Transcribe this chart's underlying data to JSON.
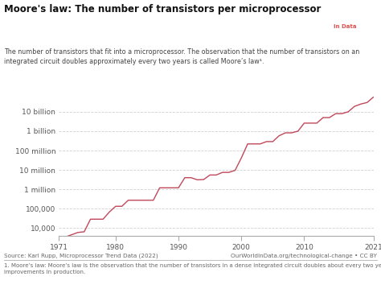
{
  "title": "Moore's law: The number of transistors per microprocessor",
  "subtitle": "The number of transistors that fit into a microprocessor. The observation that the number of transistors on an\nintegrated circuit doubles approximately every two years is called Moore’s law¹.",
  "source_left": "Source: Karl Rupp, Microprocessor Trend Data (2022)",
  "source_right": "OurWorldInData.org/technological-change • CC BY",
  "footnote": "1. Moore’s law: Moore’s law is the observation that the number of transistors in a dense integrated circuit doubles about every two years, because of\nimprovements in production.",
  "line_color": "#c0485a",
  "background_color": "#ffffff",
  "grid_color": "#cccccc",
  "ytick_labels": [
    "10,000",
    "100,000",
    "1 million",
    "10 million",
    "100 million",
    "1 billion",
    "10 billion"
  ],
  "ytick_values": [
    10000,
    100000,
    1000000,
    10000000,
    100000000,
    1000000000,
    10000000000
  ],
  "xlim": [
    1971,
    2021
  ],
  "ylim": [
    4000,
    120000000000
  ],
  "xticks": [
    1971,
    1980,
    1990,
    2000,
    2010,
    2021
  ],
  "logo_bg": "#1a3a5c",
  "data": [
    [
      1971,
      2300
    ],
    [
      1972,
      3500
    ],
    [
      1974,
      6000
    ],
    [
      1975,
      6500
    ],
    [
      1976,
      29000
    ],
    [
      1978,
      29000
    ],
    [
      1979,
      68000
    ],
    [
      1980,
      134000
    ],
    [
      1981,
      134000
    ],
    [
      1982,
      275000
    ],
    [
      1983,
      275000
    ],
    [
      1984,
      275000
    ],
    [
      1985,
      275000
    ],
    [
      1986,
      275000
    ],
    [
      1987,
      1200000
    ],
    [
      1988,
      1200000
    ],
    [
      1989,
      1200000
    ],
    [
      1990,
      1200000
    ],
    [
      1991,
      4000000
    ],
    [
      1992,
      4000000
    ],
    [
      1993,
      3100000
    ],
    [
      1994,
      3200000
    ],
    [
      1995,
      5500000
    ],
    [
      1996,
      5500000
    ],
    [
      1997,
      7500000
    ],
    [
      1998,
      7500000
    ],
    [
      1999,
      9500000
    ],
    [
      2000,
      42000000
    ],
    [
      2001,
      220000000
    ],
    [
      2002,
      220000000
    ],
    [
      2003,
      220000000
    ],
    [
      2004,
      290000000
    ],
    [
      2005,
      290000000
    ],
    [
      2006,
      580000000
    ],
    [
      2007,
      820000000
    ],
    [
      2008,
      820000000
    ],
    [
      2009,
      1000000000
    ],
    [
      2010,
      2600000000
    ],
    [
      2011,
      2600000000
    ],
    [
      2012,
      2600000000
    ],
    [
      2013,
      5000000000
    ],
    [
      2014,
      5000000000
    ],
    [
      2015,
      8000000000
    ],
    [
      2016,
      8000000000
    ],
    [
      2017,
      10000000000
    ],
    [
      2018,
      19000000000
    ],
    [
      2019,
      25000000000
    ],
    [
      2020,
      30000000000
    ],
    [
      2021,
      57000000000
    ]
  ]
}
